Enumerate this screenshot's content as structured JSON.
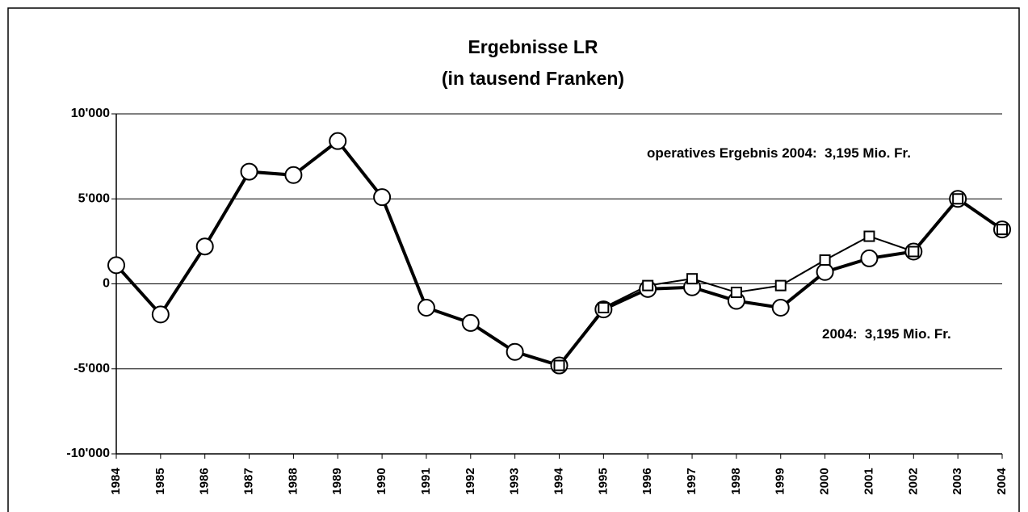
{
  "chart_data": {
    "type": "line",
    "title": [
      "Ergebnisse LR",
      "(in tausend Franken)"
    ],
    "categories": [
      "1984",
      "1985",
      "1986",
      "1987",
      "1988",
      "1989",
      "1990",
      "1991",
      "1992",
      "1993",
      "1994",
      "1995",
      "1996",
      "1997",
      "1998",
      "1999",
      "2000",
      "2001",
      "2002",
      "2003",
      "2004"
    ],
    "series": [
      {
        "color": "#000000",
        "marker": "circle",
        "values": [
          1100,
          -1800,
          2200,
          6600,
          6400,
          8400,
          5100,
          -1400,
          -2300,
          -4000,
          -4800,
          -1500,
          -300,
          -200,
          -1000,
          -1400,
          700,
          1500,
          1900,
          5000,
          3200
        ]
      },
      {
        "color": "#000000",
        "marker": "square",
        "values": [
          null,
          null,
          null,
          null,
          null,
          null,
          null,
          null,
          null,
          null,
          -4800,
          -1400,
          -100,
          300,
          -500,
          -100,
          1400,
          2800,
          1900,
          5000,
          3200
        ]
      }
    ],
    "ylim": [
      -10000,
      10000
    ],
    "yticks": [
      {
        "value": -10000,
        "label": "-10'000"
      },
      {
        "value": -5000,
        "label": "-5'000"
      },
      0,
      {
        "value": 5000,
        "label": "5'000"
      },
      {
        "value": 10000,
        "label": "10'000"
      }
    ],
    "grid": true,
    "annotations": [
      "operatives Ergebnis 2004:  3,195 Mio. Fr.",
      "2004:  3,195 Mio. Fr."
    ]
  }
}
